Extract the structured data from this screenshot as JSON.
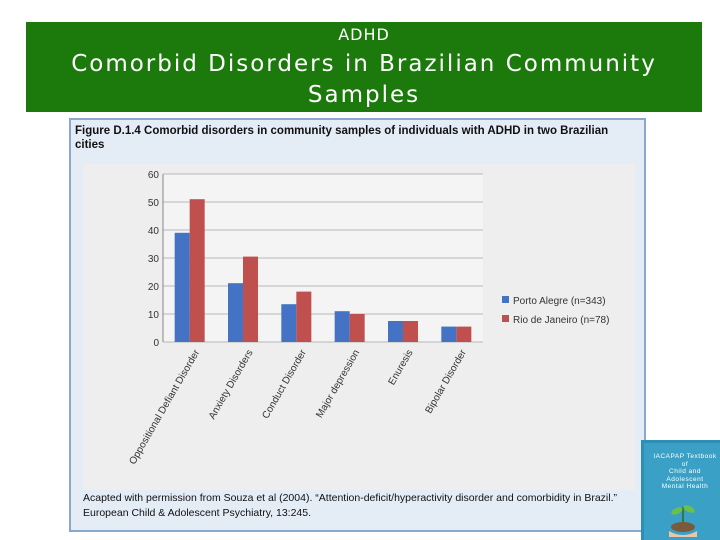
{
  "banner": {
    "kicker": "ADHD",
    "title": "Comorbid Disorders in Brazilian Community Samples"
  },
  "figure": {
    "caption": "Figure D.1.4  Comorbid disorders in community samples of individuals with ADHD in two Brazilian cities",
    "source": "Acapted with permission from Souza et al (2004). “Attention-deficit/hyperactivity disorder and comorbidity in Brazil.” European Child & Adolescent Psychiatry, 13:245."
  },
  "chart_data": {
    "type": "bar",
    "title": "",
    "xlabel": "",
    "ylabel": "",
    "ylim": [
      0,
      60
    ],
    "yticks": [
      "0",
      "10",
      "20",
      "30",
      "40",
      "50",
      "60"
    ],
    "grid": true,
    "legend_position": "right",
    "categories": [
      "Oppositional Defiant Disorder",
      "Anxiety Disorders",
      "Conduct Disorder",
      "Major depression",
      "Enuresis",
      "Bipolar Disorder"
    ],
    "series": [
      {
        "name": "Porto Alegre (n=343)",
        "color": "#4472c4",
        "values": [
          39,
          21,
          13.5,
          11,
          7.5,
          5.5
        ]
      },
      {
        "name": "Rio de Janeiro (n=78)",
        "color": "#c0504d",
        "values": [
          51,
          30.5,
          18,
          10,
          7.5,
          5.5
        ]
      }
    ]
  },
  "book": {
    "title_lines": [
      "IACAPAP Textbook",
      "of",
      "Child and Adolescent",
      "Mental Health"
    ],
    "icon": "plant-in-hand-icon"
  }
}
